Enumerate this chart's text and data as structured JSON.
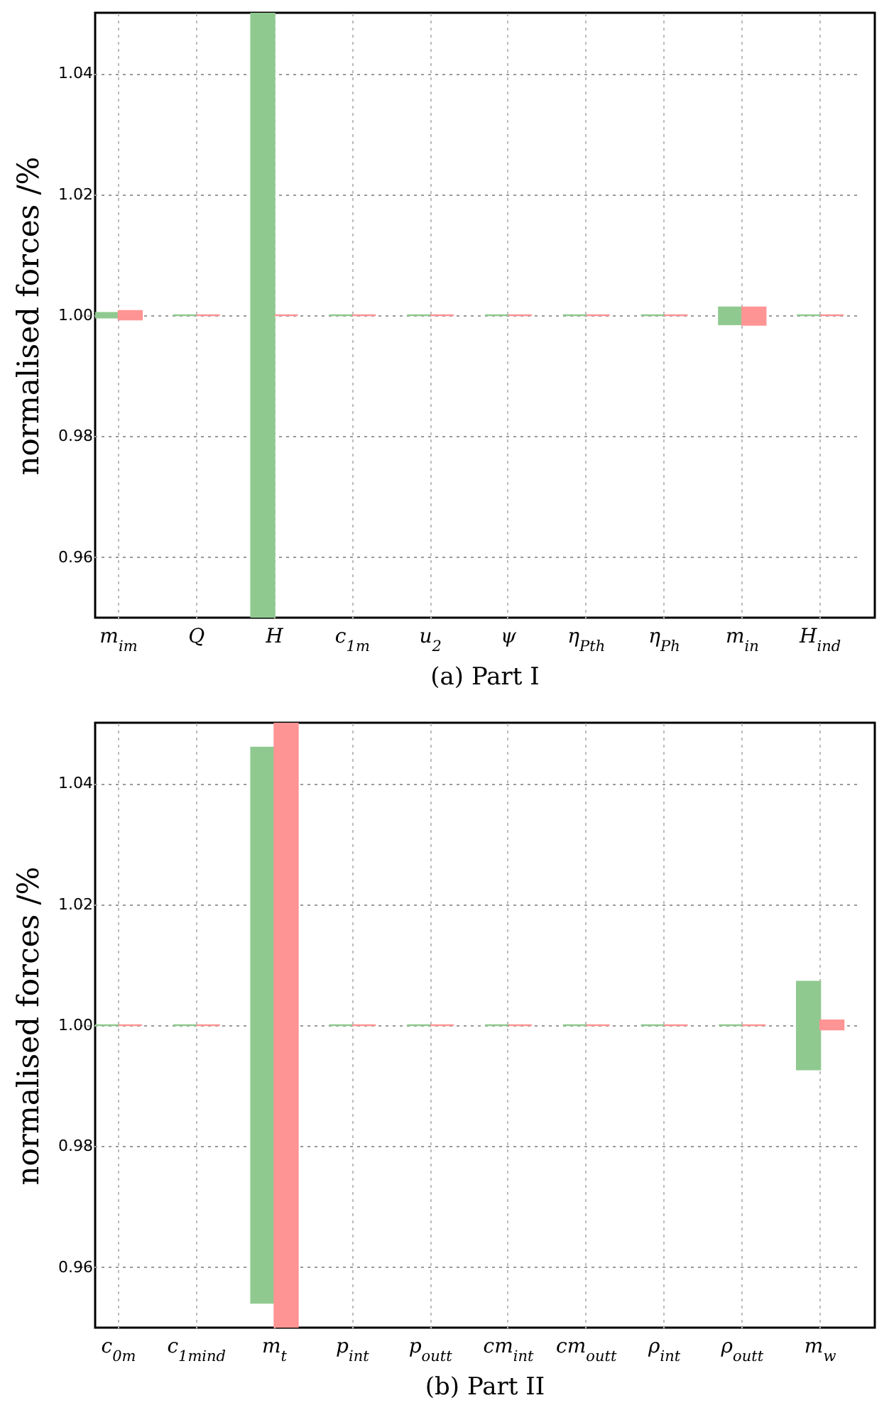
{
  "chart_data": [
    {
      "type": "bar",
      "title": "(a) Part I",
      "ylabel": "normalised forces /%",
      "categories": [
        "m$_{im}$",
        "Q",
        "H",
        "c$_{1m}$",
        "u$_{2}$",
        "ψ",
        "η$_{P}$$_{th}$",
        "η$_{P}$$_{h}$",
        "m$_{in}$",
        "H$_{ind}$"
      ],
      "series": [
        {
          "color": "#90c990",
          "base": [
            0.9996,
            1,
            0.95,
            1,
            1,
            1,
            1,
            1,
            0.9985,
            1
          ],
          "values": [
            0.0008,
            0,
            0.1,
            0,
            0,
            0,
            0,
            0,
            0.0028,
            0
          ]
        },
        {
          "color": "#ff9494",
          "base": [
            0.9993,
            1,
            1,
            1,
            1,
            1,
            1,
            1,
            0.9984,
            1
          ],
          "values": [
            0.0014,
            0,
            0,
            0,
            0,
            0,
            0,
            0,
            0.0029,
            0
          ]
        }
      ],
      "ylim": [
        0.95,
        1.05
      ],
      "yticks": [
        0.96,
        0.98,
        {
          "value": 1,
          "label": "1.00"
        },
        1.02,
        1.04
      ],
      "grid": true
    },
    {
      "type": "bar",
      "title": "(b) Part II",
      "ylabel": "normalised forces /%",
      "categories": [
        "c$_{0m}$",
        "c$_{1m}$$_{ind}$",
        "m$_{t}$",
        "p$_{in}$$_{t}$",
        "p$_{out}$$_{t}$",
        "cm$_{in}$$_{t}$",
        "cm$_{out}$$_{t}$",
        "ρ$_{in}$$_{t}$",
        "ρ$_{out}$$_{t}$",
        "m$_{w}$"
      ],
      "series": [
        {
          "color": "#90c990",
          "base": [
            1,
            1,
            0.9541,
            1,
            1,
            1,
            1,
            1,
            1,
            0.9927
          ],
          "values": [
            0,
            0,
            0.0918,
            0,
            0,
            0,
            0,
            0,
            0,
            0.0145
          ]
        },
        {
          "color": "#ff9494",
          "base": [
            1,
            1,
            0.95,
            1,
            1,
            1,
            1,
            1,
            1,
            0.9993
          ],
          "values": [
            0,
            0,
            0.1,
            0,
            0,
            0,
            0,
            0,
            0,
            0.0015
          ]
        }
      ],
      "ylim": [
        0.95,
        1.05
      ],
      "yticks": [
        0.96,
        0.98,
        {
          "value": 1,
          "label": "1.00"
        },
        1.02,
        1.04
      ],
      "grid": true
    }
  ]
}
